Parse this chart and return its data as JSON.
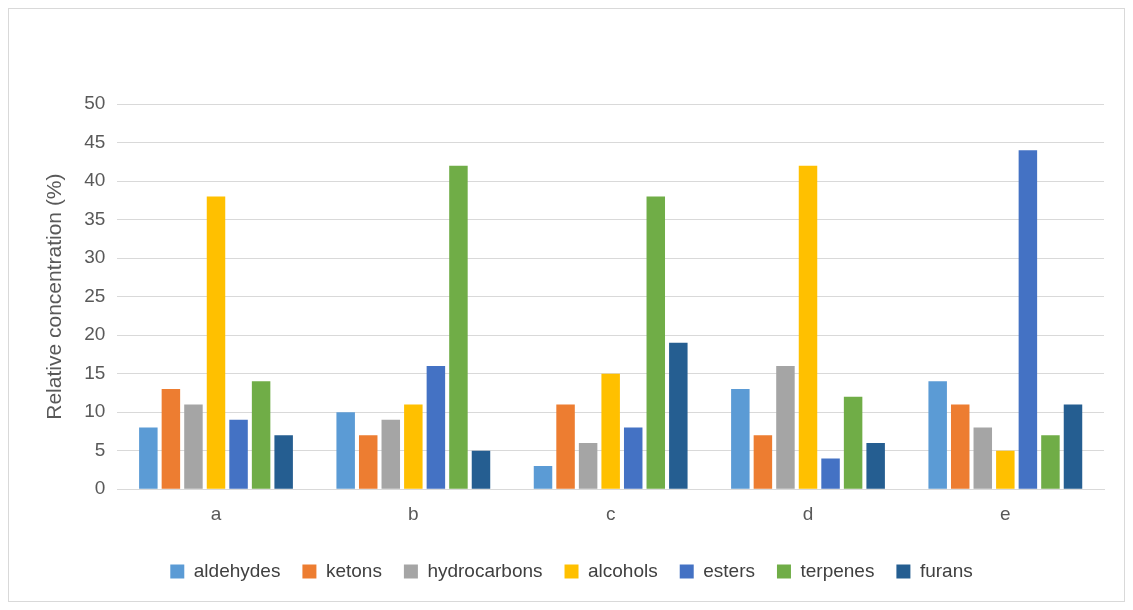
{
  "chart_data": {
    "type": "bar",
    "ylabel": "Relative concentration (%)",
    "categories": [
      "a",
      "b",
      "c",
      "d",
      "e"
    ],
    "series": [
      {
        "name": "aldehydes",
        "color": "#5b9bd5",
        "values": [
          8,
          10,
          3,
          13,
          14
        ]
      },
      {
        "name": "ketons",
        "color": "#ed7d31",
        "values": [
          13,
          7,
          11,
          7,
          11
        ]
      },
      {
        "name": "hydrocarbons",
        "color": "#a5a5a5",
        "values": [
          11,
          9,
          6,
          16,
          8
        ]
      },
      {
        "name": "alcohols",
        "color": "#ffc000",
        "values": [
          38,
          11,
          15,
          42,
          5
        ]
      },
      {
        "name": "esters",
        "color": "#4472c4",
        "values": [
          9,
          16,
          8,
          4,
          44
        ]
      },
      {
        "name": "terpenes",
        "color": "#70ad47",
        "values": [
          14,
          42,
          38,
          12,
          7
        ]
      },
      {
        "name": "furans",
        "color": "#255e91",
        "values": [
          7,
          5,
          19,
          6,
          11
        ]
      }
    ],
    "ylim": [
      0,
      50
    ],
    "yticks": [
      0,
      5,
      10,
      15,
      20,
      25,
      30,
      35,
      40,
      45,
      50
    ],
    "grid": "y",
    "legend": "bottom"
  }
}
